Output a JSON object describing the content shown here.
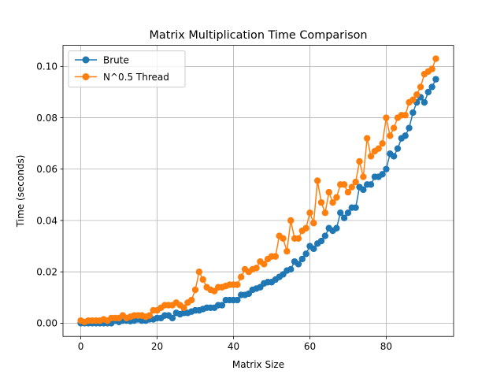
{
  "chart_data": {
    "type": "line",
    "title": "Matrix Multiplication Time Comparison",
    "xlabel": "Matrix Size",
    "ylabel": "Time (seconds)",
    "xlim": [
      -4.65,
      97.65
    ],
    "ylim": [
      -0.00515,
      0.1082
    ],
    "xticks": [
      0,
      20,
      40,
      60,
      80
    ],
    "yticks": [
      0.0,
      0.02,
      0.04,
      0.06,
      0.08,
      0.1
    ],
    "xtick_labels": [
      "0",
      "20",
      "40",
      "60",
      "80"
    ],
    "ytick_labels": [
      "0.00",
      "0.02",
      "0.04",
      "0.06",
      "0.08",
      "0.10"
    ],
    "grid": true,
    "legend_position": "upper-left",
    "x": [
      0,
      1,
      2,
      3,
      4,
      5,
      6,
      7,
      8,
      9,
      10,
      11,
      12,
      13,
      14,
      15,
      16,
      17,
      18,
      19,
      20,
      21,
      22,
      23,
      24,
      25,
      26,
      27,
      28,
      29,
      30,
      31,
      32,
      33,
      34,
      35,
      36,
      37,
      38,
      39,
      40,
      41,
      42,
      43,
      44,
      45,
      46,
      47,
      48,
      49,
      50,
      51,
      52,
      53,
      54,
      55,
      56,
      57,
      58,
      59,
      60,
      61,
      62,
      63,
      64,
      65,
      66,
      67,
      68,
      69,
      70,
      71,
      72,
      73,
      74,
      75,
      76,
      77,
      78,
      79,
      80,
      81,
      82,
      83,
      84,
      85,
      86,
      87,
      88,
      89,
      90,
      91,
      92,
      93
    ],
    "series": [
      {
        "name": "Brute",
        "color": "#1f77b4",
        "values": [
          0.0,
          0.0,
          0.0,
          0.0,
          0.0,
          0.0,
          0.0,
          0.0,
          0.0,
          0.001,
          0.0005,
          0.001,
          0.001,
          0.0008,
          0.001,
          0.0015,
          0.001,
          0.001,
          0.0015,
          0.0015,
          0.002,
          0.002,
          0.003,
          0.003,
          0.002,
          0.004,
          0.0035,
          0.004,
          0.004,
          0.0045,
          0.005,
          0.005,
          0.0055,
          0.006,
          0.006,
          0.006,
          0.007,
          0.007,
          0.009,
          0.009,
          0.009,
          0.009,
          0.011,
          0.011,
          0.0115,
          0.013,
          0.0135,
          0.014,
          0.0155,
          0.016,
          0.016,
          0.017,
          0.018,
          0.019,
          0.0205,
          0.021,
          0.024,
          0.023,
          0.025,
          0.027,
          0.03,
          0.029,
          0.031,
          0.032,
          0.034,
          0.037,
          0.036,
          0.037,
          0.043,
          0.041,
          0.043,
          0.045,
          0.045,
          0.053,
          0.052,
          0.054,
          0.054,
          0.057,
          0.057,
          0.058,
          0.06,
          0.066,
          0.065,
          0.068,
          0.072,
          0.073,
          0.076,
          0.082,
          0.086,
          0.088,
          0.086,
          0.09,
          0.092,
          0.095
        ]
      },
      {
        "name": "N^0.5 Thread",
        "color": "#ff7f0e",
        "values": [
          0.001,
          0.0005,
          0.001,
          0.001,
          0.001,
          0.001,
          0.0015,
          0.001,
          0.002,
          0.002,
          0.002,
          0.003,
          0.002,
          0.0025,
          0.003,
          0.003,
          0.003,
          0.0025,
          0.003,
          0.005,
          0.005,
          0.006,
          0.007,
          0.007,
          0.007,
          0.008,
          0.007,
          0.006,
          0.008,
          0.009,
          0.013,
          0.02,
          0.017,
          0.014,
          0.013,
          0.0125,
          0.014,
          0.014,
          0.0145,
          0.015,
          0.015,
          0.015,
          0.018,
          0.021,
          0.02,
          0.021,
          0.0215,
          0.024,
          0.023,
          0.025,
          0.026,
          0.026,
          0.034,
          0.033,
          0.028,
          0.04,
          0.033,
          0.033,
          0.036,
          0.037,
          0.043,
          0.039,
          0.0555,
          0.047,
          0.043,
          0.051,
          0.047,
          0.049,
          0.054,
          0.054,
          0.051,
          0.053,
          0.055,
          0.063,
          0.057,
          0.072,
          0.065,
          0.067,
          0.068,
          0.07,
          0.08,
          0.073,
          0.076,
          0.08,
          0.081,
          0.081,
          0.086,
          0.087,
          0.089,
          0.092,
          0.097,
          0.098,
          0.099,
          0.103
        ]
      }
    ]
  }
}
